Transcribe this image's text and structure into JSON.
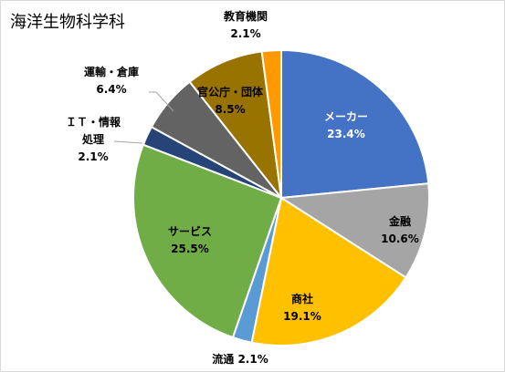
{
  "chart_data": {
    "type": "pie",
    "title": "海洋生物科学科",
    "slices": [
      {
        "name": "メーカー",
        "value": 23.4,
        "pct": "23.4%",
        "color": "#4472C4"
      },
      {
        "name": "金融",
        "value": 10.6,
        "pct": "10.6%",
        "color": "#A5A5A5"
      },
      {
        "name": "商社",
        "value": 19.1,
        "pct": "19.1%",
        "color": "#FFC000"
      },
      {
        "name": "流通",
        "value": 2.1,
        "pct": "2.1%",
        "color": "#5B9BD5"
      },
      {
        "name": "サービス",
        "value": 25.5,
        "pct": "25.5%",
        "color": "#70AD47"
      },
      {
        "name": "ＩＴ・情報処理",
        "value": 2.1,
        "pct": "2.1%",
        "color": "#264478"
      },
      {
        "name": "運輸・倉庫",
        "value": 6.4,
        "pct": "6.4%",
        "color": "#636363"
      },
      {
        "name": "官公庁・団体",
        "value": 8.5,
        "pct": "8.5%",
        "color": "#997300"
      },
      {
        "name": "教育機関",
        "value": 2.1,
        "pct": "2.1%",
        "color": "#FF9900"
      }
    ],
    "label_lines": [
      [
        "メーカー",
        "23.4%"
      ],
      [
        "金融",
        "10.6%"
      ],
      [
        "商社",
        "19.1%"
      ],
      [
        "流通 2.1%"
      ],
      [
        "サービス",
        "25.5%"
      ],
      [
        "ＩＴ・情報",
        "処理",
        "2.1%"
      ],
      [
        "運輸・倉庫",
        "6.4%"
      ],
      [
        "官公庁・団体",
        "8.5%"
      ],
      [
        "教育機関",
        "2.1%"
      ]
    ]
  }
}
